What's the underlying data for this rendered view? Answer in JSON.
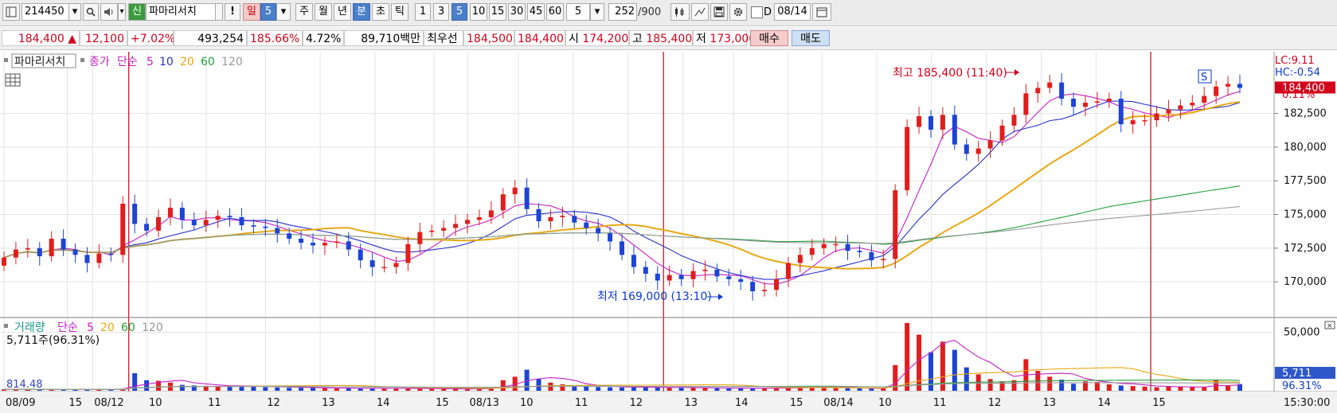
{
  "toolbar": {
    "code": "214450",
    "new_badge": "신",
    "stock_name": "파마리서치",
    "alert_label": "!",
    "day_label": "일",
    "day_value": "5",
    "week_label": "주",
    "month_label": "월",
    "year_label": "년",
    "minute_label": "분",
    "second_label": "초",
    "tick_label": "틱",
    "intervals": [
      "1",
      "3",
      "5",
      "10",
      "15",
      "30",
      "45",
      "60"
    ],
    "selected_interval": "5",
    "count_select": "5",
    "count_value": "252",
    "count_total": "/900",
    "d_label": "D",
    "date": "08/14"
  },
  "info": {
    "price": "184,400",
    "change_arrow": "▲",
    "change": "12,100",
    "change_pct": "+7.02%",
    "volume": "493,254",
    "volume_ratio": "185.66%",
    "turnover_rate": "4.72%",
    "amount": "89,710백만",
    "best_label": "최우선",
    "best_ask": "184,500",
    "best_bid": "184,400",
    "open_label": "시",
    "open": "174,200",
    "high_label": "고",
    "high": "185,400",
    "low_label": "저",
    "low": "173,000",
    "buy_label": "매수",
    "sell_label": "매도"
  },
  "price_legend": {
    "stock_name": "파마리서치",
    "close_label": "종가",
    "simple_label": "단순",
    "periods": [
      "5",
      "10",
      "20",
      "60",
      "120"
    ]
  },
  "volume_legend": {
    "title": "거래량",
    "simple_label": "단순",
    "periods": [
      "5",
      "20",
      "60",
      "120"
    ],
    "current": "5,711주(96.31%)",
    "ma_value": "814.48"
  },
  "right_info": {
    "lc": "LC:9.11",
    "hc": "HC:-0.54",
    "price_tag": "184,400",
    "price_pct": "0.11%",
    "volume_tag": "5,711",
    "volume_pct": "96.31%",
    "time": "15:30:00"
  },
  "annotations": {
    "high": "최고 185,400 (11:40)",
    "low": "최저 169,000 (13:10)",
    "marker": "S"
  },
  "chart_data": [
    {
      "type": "candlestick",
      "title": "파마리서치",
      "y_ticks": [
        170000,
        172500,
        175000,
        177500,
        180000,
        182500
      ],
      "y_tick_labels": [
        "170,000",
        "172,500",
        "175,000",
        "177,500",
        "180,000",
        "182,500"
      ],
      "ylim": [
        168000,
        186200
      ],
      "x_labels": [
        "08/09",
        "15",
        "08/12",
        "10",
        "11",
        "12",
        "13",
        "14",
        "15",
        "08/13",
        "10",
        "11",
        "12",
        "13",
        "14",
        "15",
        "08/14",
        "10",
        "11",
        "12",
        "13",
        "14",
        "15"
      ],
      "day_separators": [
        "08/12",
        "08/13",
        "08/14"
      ],
      "high": 185400,
      "low": 169000,
      "last": 184400,
      "close": [
        171800,
        172400,
        172500,
        171900,
        173200,
        172400,
        172000,
        171400,
        172100,
        172000,
        175800,
        174300,
        173800,
        174800,
        175500,
        174600,
        174200,
        174600,
        174900,
        174800,
        174200,
        174100,
        174000,
        173600,
        173200,
        172900,
        172700,
        172900,
        173000,
        172400,
        171600,
        171100,
        171100,
        171400,
        172800,
        173700,
        173800,
        174000,
        174300,
        174600,
        174800,
        175300,
        176500,
        177000,
        175400,
        174500,
        174800,
        174900,
        174400,
        174000,
        173600,
        173000,
        172000,
        171100,
        170600,
        170100,
        170500,
        170200,
        170800,
        170900,
        170400,
        170200,
        170000,
        169300,
        169400,
        170200,
        171400,
        172000,
        172500,
        172800,
        172800,
        172300,
        172200,
        171600,
        171700,
        176800,
        181500,
        182300,
        181300,
        182400,
        180200,
        179500,
        179900,
        180500,
        181600,
        182400,
        184000,
        184400,
        184800,
        183600,
        183000,
        183300,
        183400,
        183600,
        181700,
        182000,
        182000,
        182500,
        182800,
        183100,
        183300,
        183800,
        184500,
        184700,
        184400
      ],
      "ma_periods": [
        5,
        10,
        20,
        60,
        120
      ],
      "ma_colors": [
        "#c61fc6",
        "#2731c9",
        "#e8a814",
        "#22a03b",
        "#999999"
      ]
    },
    {
      "type": "bar",
      "title": "거래량",
      "y_ticks": [
        50000
      ],
      "y_tick_labels": [
        "50,000"
      ],
      "ylim": [
        0,
        62000
      ],
      "values": [
        1200,
        1400,
        900,
        1000,
        1100,
        900,
        1300,
        1000,
        1000,
        1100,
        1700,
        15000,
        9000,
        8500,
        7000,
        5000,
        4500,
        4200,
        4000,
        3800,
        4200,
        3500,
        3000,
        2800,
        2500,
        2600,
        2400,
        2200,
        2000,
        2100,
        2000,
        1800,
        2000,
        2200,
        1900,
        1700,
        1600,
        1500,
        1500,
        1700,
        1800,
        2000,
        9000,
        12000,
        18000,
        10000,
        7000,
        5500,
        4000,
        3600,
        3200,
        3000,
        2800,
        2900,
        3100,
        2700,
        2500,
        2400,
        2600,
        2300,
        2100,
        2000,
        2200,
        2000,
        2100,
        2400,
        2800,
        3000,
        3200,
        2700,
        2300,
        2100,
        2000,
        1900,
        2000,
        22000,
        58000,
        48000,
        33000,
        42000,
        35000,
        20000,
        14000,
        10000,
        8000,
        9000,
        27000,
        17000,
        12000,
        9500,
        6000,
        8000,
        7500,
        5500,
        4500,
        4000,
        3500,
        3000,
        3500,
        3200,
        3000,
        2800,
        9000,
        4500,
        5711
      ],
      "ma_periods": [
        5,
        20,
        60,
        120
      ],
      "ma_colors": [
        "#c61fc6",
        "#e8a814",
        "#22a03b",
        "#999999"
      ]
    }
  ]
}
